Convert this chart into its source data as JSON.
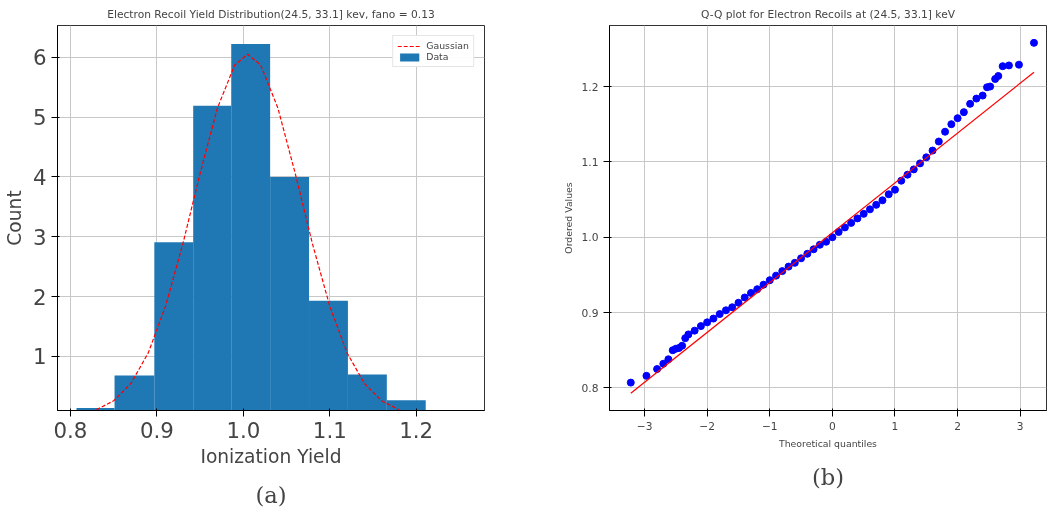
{
  "chart_data": [
    {
      "type": "histogram",
      "title": "Electron Recoil Yield Distribution(24.5, 33.1] kev, fano = 0.13",
      "xlabel": "Ionization Yield",
      "ylabel": "Count",
      "bins": [
        0.807,
        0.851,
        0.897,
        0.942,
        0.986,
        1.031,
        1.076,
        1.121,
        1.166,
        1.211
      ],
      "series": [
        {
          "name": "Gaussian",
          "type": "line",
          "color": "#ff0000",
          "line_style": "dashed",
          "x": [
            0.83,
            0.85,
            0.87,
            0.89,
            0.91,
            0.93,
            0.95,
            0.97,
            0.99,
            1.005,
            1.02,
            1.04,
            1.06,
            1.08,
            1.1,
            1.12,
            1.14,
            1.16,
            1.18
          ],
          "values": [
            0.11,
            0.26,
            0.55,
            1.06,
            1.84,
            2.88,
            4.06,
            5.15,
            5.87,
            6.05,
            5.87,
            5.15,
            4.06,
            2.88,
            1.84,
            1.06,
            0.55,
            0.26,
            0.11
          ]
        },
        {
          "name": "Data",
          "color": "#1f77b4",
          "values": [
            0.14,
            0.68,
            2.91,
            5.19,
            6.22,
            4.0,
            1.93,
            0.7,
            0.27
          ]
        }
      ],
      "xlim": [
        0.785,
        1.279
      ],
      "ylim": [
        0.097,
        6.53
      ],
      "xticks": [
        0.8,
        0.9,
        {
          "value": 1.0,
          "label": "1.0"
        },
        1.1,
        1.2
      ],
      "yticks": [
        1,
        2,
        3,
        4,
        5,
        6
      ],
      "grid": true,
      "legend": "top right",
      "annotations": [
        "(a)"
      ]
    },
    {
      "type": "scatter",
      "title": "Q-Q plot for Electron Recoils at (24.5, 33.1] keV",
      "xlabel": "Theoretical quantiles",
      "ylabel": "Ordered Values",
      "series": [
        {
          "color": "#0000ff",
          "marker": "circle",
          "x": [
            -3.22,
            -2.97,
            -2.8,
            -2.7,
            -2.62,
            -2.55,
            -2.5,
            -2.45,
            -2.4,
            -2.35,
            -2.3,
            -2.2,
            -2.1,
            -2.0,
            -1.9,
            -1.8,
            -1.7,
            -1.6,
            -1.5,
            -1.4,
            -1.3,
            -1.2,
            -1.1,
            -1.0,
            -0.9,
            -0.8,
            -0.7,
            -0.6,
            -0.5,
            -0.4,
            -0.3,
            -0.2,
            -0.1,
            0,
            0.1,
            0.2,
            0.3,
            0.4,
            0.5,
            0.6,
            0.7,
            0.8,
            0.9,
            1.0,
            1.1,
            1.2,
            1.3,
            1.4,
            1.5,
            1.6,
            1.7,
            1.8,
            1.9,
            2.0,
            2.1,
            2.2,
            2.3,
            2.4,
            2.47,
            2.52,
            2.6,
            2.65,
            2.72,
            2.82,
            2.98,
            3.22
          ],
          "values": [
            0.807,
            0.816,
            0.825,
            0.832,
            0.838,
            0.85,
            0.852,
            0.853,
            0.856,
            0.866,
            0.871,
            0.876,
            0.882,
            0.887,
            0.892,
            0.898,
            0.903,
            0.907,
            0.913,
            0.92,
            0.926,
            0.931,
            0.937,
            0.943,
            0.949,
            0.955,
            0.961,
            0.966,
            0.972,
            0.978,
            0.984,
            0.99,
            0.994,
            1.0,
            1.007,
            1.013,
            1.019,
            1.025,
            1.031,
            1.037,
            1.043,
            1.049,
            1.057,
            1.063,
            1.075,
            1.083,
            1.09,
            1.098,
            1.106,
            1.115,
            1.127,
            1.14,
            1.15,
            1.158,
            1.166,
            1.177,
            1.184,
            1.188,
            1.199,
            1.2,
            1.21,
            1.214,
            1.227,
            1.228,
            1.229,
            1.258
          ]
        },
        {
          "type": "line",
          "color": "#ff0000",
          "line_style": "solid",
          "x": [
            -3.22,
            3.22
          ],
          "values": [
            0.793,
            1.219
          ]
        }
      ],
      "xlim": [
        -3.56,
        3.42
      ],
      "ylim": [
        0.77,
        1.281
      ],
      "xticks": [
        {
          "value": -3,
          "label": "−3"
        },
        {
          "value": -2,
          "label": "−2"
        },
        {
          "value": -1,
          "label": "−1"
        },
        0,
        1,
        2,
        3
      ],
      "yticks": [
        0.8,
        0.9,
        {
          "value": 1.0,
          "label": "1.0"
        },
        1.1,
        1.2
      ],
      "grid": true,
      "annotations": [
        "(b)"
      ]
    }
  ]
}
